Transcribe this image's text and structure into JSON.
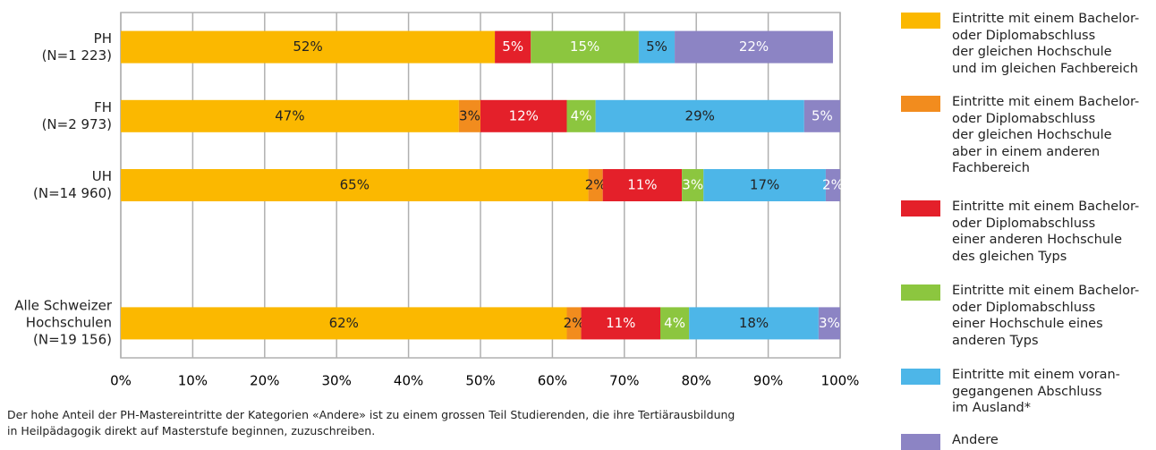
{
  "chart_data": {
    "type": "stacked-barh",
    "categories": [
      "PH\n(N=1 223)",
      "FH\n(N=2 973)",
      "UH\n(N=14 960)",
      null,
      "Alle Schweizer\nHochschulen\n(N=19 156)"
    ],
    "series": [
      {
        "name": "Eintritte mit einem Bachelor-\noder Diplomabschluss\nder gleichen Hochschule\nund im gleichen Fachbereich",
        "color": "#fbb800",
        "label_color": "#222",
        "values": [
          52,
          47,
          65,
          null,
          62
        ],
        "value_labels": [
          "52%",
          "47%",
          "65%",
          null,
          "62%"
        ]
      },
      {
        "name": "Eintritte mit einem Bachelor-\noder Diplomabschluss\nder gleichen Hochschule\naber in einem anderen\nFachbereich",
        "color": "#f28c1e",
        "label_color": "#222",
        "values": [
          0,
          3,
          2,
          null,
          2
        ],
        "value_labels": [
          null,
          "3%",
          "2%",
          null,
          "2%"
        ]
      },
      {
        "name": "Eintritte mit einem Bachelor-\noder Diplomabschluss\neiner anderen Hochschule\ndes gleichen Typs",
        "color": "#e4202a",
        "label_color": "#fff",
        "values": [
          5,
          12,
          11,
          null,
          11
        ],
        "value_labels": [
          "5%",
          "12%",
          "11%",
          null,
          "11%"
        ]
      },
      {
        "name": "Eintritte mit einem Bachelor-\noder Diplomabschluss\neiner Hochschule eines\nanderen Typs",
        "color": "#8cc63f",
        "label_color": "#fff",
        "values": [
          15,
          4,
          3,
          null,
          4
        ],
        "value_labels": [
          "15%",
          "4%",
          "3%",
          null,
          "4%"
        ]
      },
      {
        "name": "Eintritte mit einem voran-\ngegangenen Abschluss\nim Ausland*",
        "color": "#4db6e8",
        "label_color": "#222",
        "values": [
          5,
          29,
          17,
          null,
          18
        ],
        "value_labels": [
          "5%",
          "29%",
          "17%",
          null,
          "18%"
        ]
      },
      {
        "name": "Andere",
        "color": "#8c84c4",
        "label_color": "#fff",
        "values": [
          22,
          5,
          2,
          null,
          3
        ],
        "value_labels": [
          "22%",
          "5%",
          "2%",
          null,
          "3%"
        ]
      }
    ],
    "xlim": [
      0,
      100
    ],
    "xticks": [
      {
        "value": 0,
        "label": "0%"
      },
      {
        "value": 10,
        "label": "10%"
      },
      {
        "value": 20,
        "label": "20%"
      },
      {
        "value": 30,
        "label": "30%"
      },
      {
        "value": 40,
        "label": "40%"
      },
      {
        "value": 50,
        "label": "50%"
      },
      {
        "value": 60,
        "label": "60%"
      },
      {
        "value": 70,
        "label": "70%"
      },
      {
        "value": 80,
        "label": "80%"
      },
      {
        "value": 90,
        "label": "90%"
      },
      {
        "value": 100,
        "label": "100%"
      }
    ],
    "grid": true,
    "legend": "right",
    "note": "Der hohe Anteil der PH-Mastereintritte der Kategorien «Andere» ist zu einem grossen Teil Studierenden, die ihre Tertiärausbildung\nin Heilpädagogik direkt auf Masterstufe beginnen, zuzuschreiben."
  }
}
